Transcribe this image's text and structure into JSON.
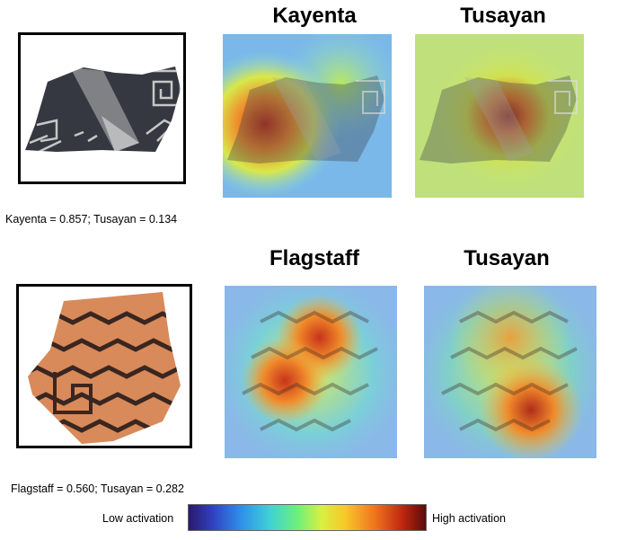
{
  "row1": {
    "titles": [
      "Kayenta",
      "Tusayan"
    ],
    "caption": "Kayenta = 0.857; Tusayan = 0.134"
  },
  "row2": {
    "titles": [
      "Flagstaff",
      "Tusayan"
    ],
    "caption": "Flagstaff = 0.560; Tusayan = 0.282"
  },
  "colorbar": {
    "low_label": "Low activation",
    "high_label": "High activation"
  },
  "colors": {
    "background": "#ffffff",
    "frame": "#000000",
    "colormap": [
      "#2a1a6a",
      "#3040c0",
      "#2f8fe8",
      "#3fd0d8",
      "#6ef07a",
      "#d8f040",
      "#f8c828",
      "#f07820",
      "#c02810",
      "#5a0a0a"
    ]
  }
}
